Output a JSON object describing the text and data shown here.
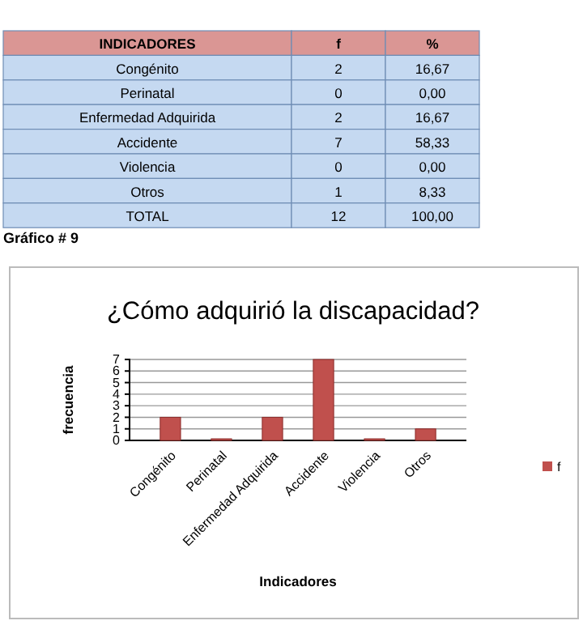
{
  "chart_data": [
    {
      "type": "other",
      "xlabel": "INDICADORES",
      "categories": [
        "Congénito",
        "Perinatal",
        "Enfermedad Adquirida",
        "Accidente",
        "Violencia",
        "Otros"
      ],
      "data_labels": true,
      "series": [
        {
          "name": "f",
          "values": [
            2,
            0,
            2,
            7,
            0,
            1
          ]
        },
        {
          "name": "%",
          "values": [
            16.67,
            0,
            16.67,
            58.33,
            0,
            8.33
          ],
          "value_labels": [
            "16,67",
            "0,00",
            "16,67",
            "58,33",
            "0,00",
            "8,33"
          ]
        }
      ],
      "totals": [
        "12",
        "100,00"
      ],
      "annotations": [
        "TOTAL"
      ]
    },
    {
      "type": "bar",
      "title": "¿Cómo adquirió la discapacidad?",
      "xlabel": "Indicadores",
      "ylabel": "frecuencia",
      "categories": [
        "Congénito",
        "Perinatal",
        "Enfermedad Adquirida",
        "Accidente",
        "Violencia",
        "Otros"
      ],
      "series": [
        {
          "name": "f",
          "color": "#c0504d",
          "values": [
            2,
            0,
            2,
            7,
            0,
            1
          ]
        }
      ],
      "ylim": [
        0,
        7
      ],
      "yticks": [
        0,
        1,
        2,
        3,
        4,
        5,
        6,
        7
      ],
      "grid": "y",
      "legend": "right",
      "annotations": [
        "Gráfico # 9"
      ]
    }
  ]
}
